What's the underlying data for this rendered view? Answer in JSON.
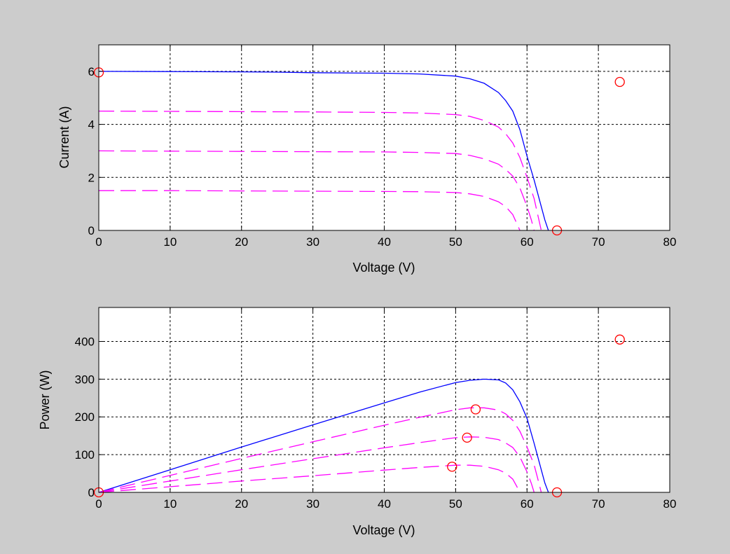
{
  "figure": {
    "background": "#cccccc"
  },
  "styles": {
    "axes_bg": "#ffffff",
    "grid_color": "#000000",
    "main_color": "#0000ff",
    "scaled_color": "#ff00ff",
    "marker_color": "#ff0000"
  },
  "chart_data": [
    {
      "type": "line",
      "xlabel": "Voltage (V)",
      "ylabel": "Current (A)",
      "xlim": [
        0,
        80
      ],
      "ylim": [
        0,
        7
      ],
      "xticks": [
        0,
        10,
        20,
        30,
        40,
        50,
        60,
        70,
        80
      ],
      "yticks": [
        0,
        2,
        4,
        6
      ],
      "grid": true,
      "series": [
        {
          "style": "solid",
          "color": "#0000ff",
          "x": [
            0,
            10,
            20,
            25,
            30,
            40,
            45,
            50,
            52,
            54,
            56,
            57,
            58,
            59,
            60,
            61,
            62,
            62.5,
            63
          ],
          "y": [
            6.0,
            5.99,
            5.98,
            5.97,
            5.95,
            5.93,
            5.9,
            5.82,
            5.72,
            5.55,
            5.2,
            4.9,
            4.5,
            3.8,
            2.8,
            1.9,
            0.9,
            0.4,
            0
          ]
        },
        {
          "style": "dashed",
          "color": "#ff00ff",
          "x": [
            0,
            10,
            20,
            30,
            40,
            45,
            50,
            52,
            54,
            56,
            57,
            58,
            59,
            60,
            61,
            61.5,
            62
          ],
          "y": [
            4.5,
            4.49,
            4.48,
            4.47,
            4.45,
            4.43,
            4.37,
            4.3,
            4.15,
            3.9,
            3.65,
            3.3,
            2.75,
            2.0,
            1.2,
            0.6,
            0
          ]
        },
        {
          "style": "dashed",
          "color": "#ff00ff",
          "x": [
            0,
            10,
            20,
            30,
            40,
            45,
            50,
            52,
            54,
            56,
            57,
            58,
            59,
            60,
            60.6,
            61
          ],
          "y": [
            3.0,
            2.99,
            2.98,
            2.97,
            2.96,
            2.94,
            2.9,
            2.83,
            2.7,
            2.5,
            2.3,
            2.05,
            1.6,
            0.9,
            0.4,
            0
          ]
        },
        {
          "style": "dashed",
          "color": "#ff00ff",
          "x": [
            0,
            10,
            20,
            30,
            40,
            45,
            50,
            52,
            54,
            56,
            57,
            58,
            58.5,
            59
          ],
          "y": [
            1.5,
            1.5,
            1.49,
            1.48,
            1.47,
            1.46,
            1.43,
            1.38,
            1.28,
            1.08,
            0.9,
            0.6,
            0.3,
            0
          ]
        }
      ],
      "markers": {
        "color": "#ff0000",
        "x": [
          0,
          64.2,
          73
        ],
        "y": [
          5.96,
          0,
          5.6
        ]
      }
    },
    {
      "type": "line",
      "xlabel": "Voltage (V)",
      "ylabel": "Power (W)",
      "xlim": [
        0,
        80
      ],
      "ylim": [
        0,
        490
      ],
      "xticks": [
        0,
        10,
        20,
        30,
        40,
        50,
        60,
        70,
        80
      ],
      "yticks": [
        0,
        100,
        200,
        300,
        400
      ],
      "grid": true,
      "series": [
        {
          "style": "solid",
          "color": "#0000ff",
          "x": [
            0,
            10,
            20,
            30,
            40,
            45,
            50,
            52,
            54,
            56,
            57,
            58,
            59,
            60,
            61,
            62,
            62.5,
            63
          ],
          "y": [
            0,
            60,
            120,
            179,
            237,
            266,
            291,
            297,
            300,
            298,
            290,
            272,
            240,
            196,
            130,
            60,
            25,
            0
          ]
        },
        {
          "style": "dashed",
          "color": "#ff00ff",
          "x": [
            0,
            10,
            20,
            30,
            40,
            45,
            50,
            52,
            54,
            56,
            57,
            58,
            59,
            60,
            61,
            61.5,
            62
          ],
          "y": [
            0,
            45,
            90,
            134,
            178,
            199,
            219,
            224,
            224,
            218,
            208,
            191,
            162,
            120,
            73,
            37,
            0
          ]
        },
        {
          "style": "dashed",
          "color": "#ff00ff",
          "x": [
            0,
            10,
            20,
            30,
            40,
            45,
            50,
            52,
            54,
            56,
            57,
            58,
            59,
            60,
            60.6,
            61
          ],
          "y": [
            0,
            30,
            60,
            89,
            118,
            132,
            145,
            147,
            146,
            140,
            131,
            119,
            94,
            54,
            24,
            0
          ]
        },
        {
          "style": "dashed",
          "color": "#ff00ff",
          "x": [
            0,
            10,
            20,
            30,
            40,
            45,
            50,
            52,
            54,
            56,
            57,
            58,
            58.5,
            59
          ],
          "y": [
            0,
            15,
            30,
            44,
            59,
            66,
            72,
            72,
            69,
            60,
            51,
            35,
            18,
            0
          ]
        }
      ],
      "markers": {
        "color": "#ff0000",
        "x": [
          0,
          64.2,
          73,
          52.8,
          51.6,
          49.5
        ],
        "y": [
          0,
          0,
          405,
          220,
          145,
          68
        ]
      }
    }
  ]
}
